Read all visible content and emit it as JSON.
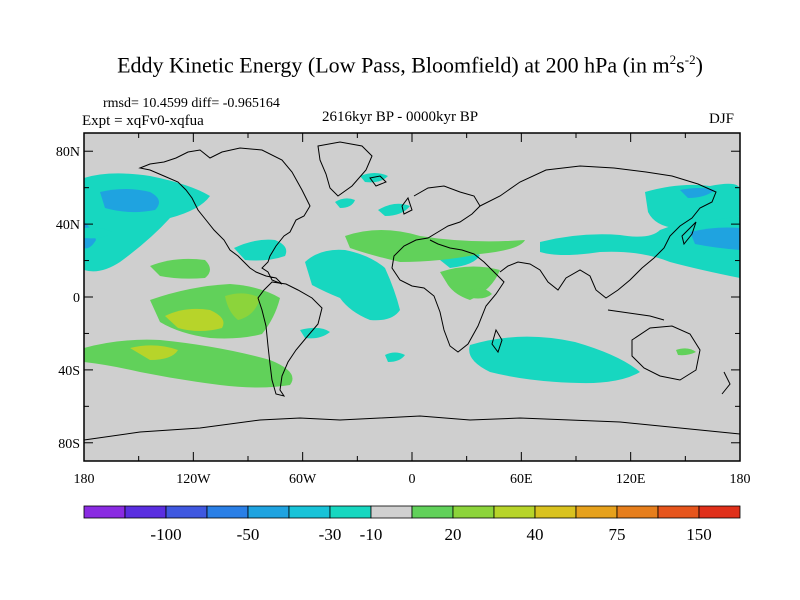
{
  "title": "Eddy Kinetic Energy (Low Pass, Bloomfield) at 200 hPa (in m",
  "title_units": {
    "sup1": "2",
    "mid": "s",
    "sup2": "-2",
    "close": ")"
  },
  "stats": "rmsd= 10.4599  diff= -0.965164",
  "experiment": "Expt = xqFv0-xqfua",
  "period": "2616kyr BP - 0000kyr BP",
  "season": "DJF",
  "map": {
    "lat_ticks": [
      "80N",
      "40N",
      "0",
      "40S",
      "80S"
    ],
    "lat_values": [
      80,
      40,
      0,
      -40,
      -80
    ],
    "lon_ticks": [
      "180",
      "120W",
      "60W",
      "0",
      "60E",
      "120E",
      "180"
    ],
    "lon_values": [
      -180,
      -120,
      -60,
      0,
      60,
      120,
      180
    ],
    "lat_range": [
      -90,
      90
    ],
    "lon_range": [
      -180,
      180
    ],
    "background_color": "#cfcfcf"
  },
  "colorbar": {
    "labels": [
      "-100",
      "-50",
      "-30",
      "-10",
      "20",
      "40",
      "75",
      "150"
    ],
    "colors": [
      "#8a2be2",
      "#5a2ee0",
      "#3f58e0",
      "#2a7fe6",
      "#1fa3e0",
      "#18c3d8",
      "#17d7c0",
      "#d0d0d0",
      "#61d15a",
      "#8cd43b",
      "#b7d42a",
      "#d9c21f",
      "#e6a11c",
      "#e67e1c",
      "#e6551c",
      "#e0301a"
    ]
  }
}
